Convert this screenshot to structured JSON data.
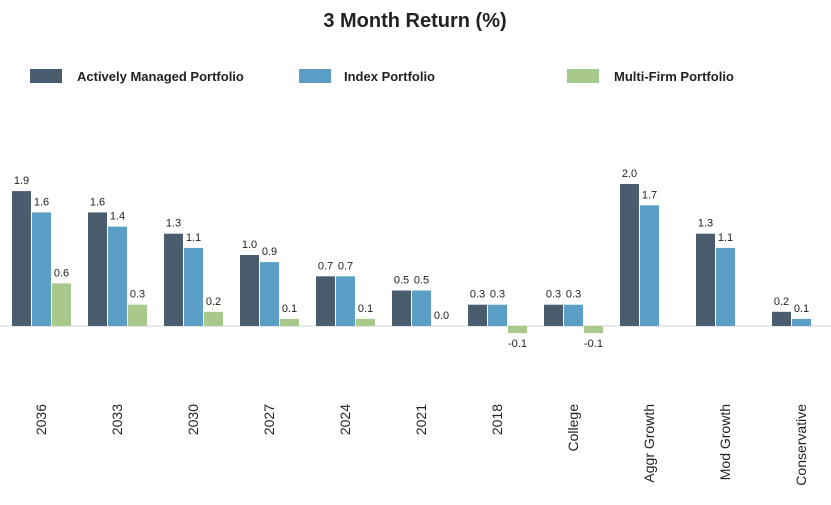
{
  "chart_data": {
    "type": "bar",
    "title": "3 Month Return (%)",
    "categories": [
      "2036",
      "2033",
      "2030",
      "2027",
      "2024",
      "2021",
      "2018",
      "College",
      "Aggr Growth",
      "Mod  Growth",
      "Conservative"
    ],
    "series": [
      {
        "name": "Actively Managed Portfolio",
        "color": "#4a5d6e",
        "values": [
          1.9,
          1.6,
          1.3,
          1.0,
          0.7,
          0.5,
          0.3,
          0.3,
          2.0,
          1.3,
          0.2
        ],
        "value_labels": [
          "1.9",
          "1.6",
          "1.3",
          "1.0",
          "0.7",
          "0.5",
          "0.3",
          "0.3",
          "2.0",
          "1.3",
          "0.2"
        ]
      },
      {
        "name": "Index Portfolio",
        "color": "#5b9ec6",
        "values": [
          1.6,
          1.4,
          1.1,
          0.9,
          0.7,
          0.5,
          0.3,
          0.3,
          1.7,
          1.1,
          0.1
        ],
        "value_labels": [
          "1.6",
          "1.4",
          "1.1",
          "0.9",
          "0.7",
          "0.5",
          "0.3",
          "0.3",
          "1.7",
          "1.1",
          "0.1"
        ]
      },
      {
        "name": "Multi-Firm Portfolio",
        "color": "#a9c98c",
        "values": [
          0.6,
          0.3,
          0.2,
          0.1,
          0.1,
          0.0,
          -0.1,
          -0.1,
          null,
          null,
          null
        ],
        "value_labels": [
          "0.6",
          "0.3",
          "0.2",
          "0.1",
          "0.1",
          "0.0",
          "-0.1",
          "-0.1",
          null,
          null,
          null
        ]
      }
    ]
  }
}
